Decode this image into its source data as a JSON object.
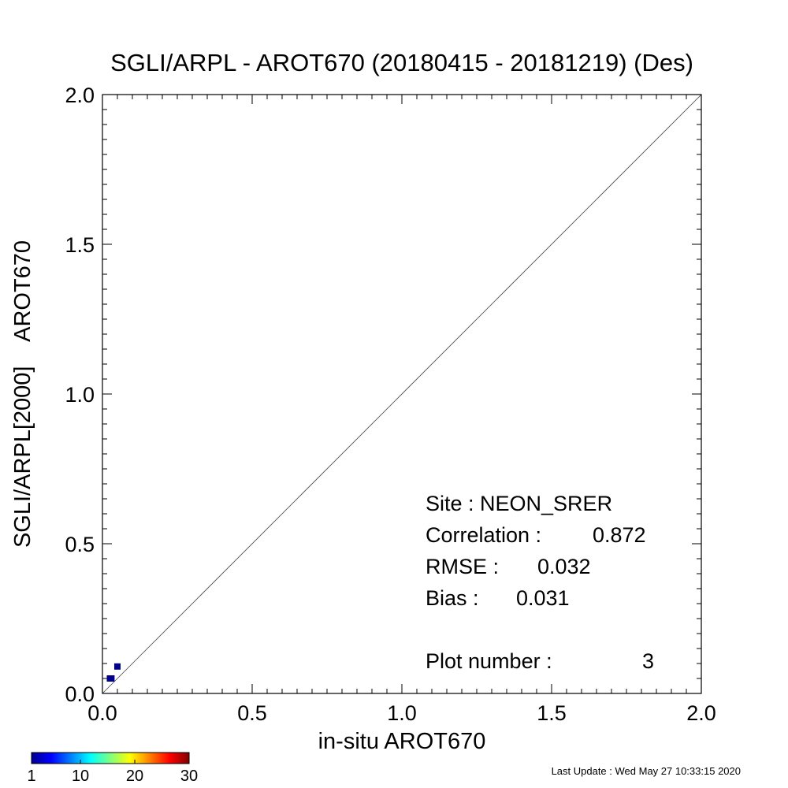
{
  "chart_data": {
    "type": "scatter",
    "title": "SGLI/ARPL - AROT670 (20180415 - 20181219) (Des)",
    "xlabel": "in-situ AROT670",
    "ylabel": "SGLI/ARPL[2000]    AROT670",
    "xlim": [
      0,
      2
    ],
    "ylim": [
      0,
      2
    ],
    "xticks": [
      "0.0",
      "0.5",
      "1.0",
      "1.5",
      "2.0"
    ],
    "yticks": [
      "0.0",
      "0.5",
      "1.0",
      "1.5",
      "2.0"
    ],
    "one_to_one_line": true,
    "grid": false,
    "points": [
      {
        "x": 0.03,
        "y": 0.05,
        "count": 1
      },
      {
        "x": 0.05,
        "y": 0.09,
        "count": 1
      },
      {
        "x": 0.025,
        "y": 0.05,
        "count": 1
      }
    ],
    "stats": [
      {
        "label": "Site : NEON_SRER",
        "value": ""
      },
      {
        "label": "Correlation :",
        "value": "0.872"
      },
      {
        "label": "RMSE :",
        "value": "0.032"
      },
      {
        "label": "Bias :",
        "value": "0.031"
      },
      {
        "label": "Plot number :",
        "value": "3"
      }
    ],
    "colorbar": {
      "ticks": [
        "1",
        "10",
        "20",
        "30"
      ],
      "tick_values": [
        1,
        10,
        20,
        30
      ],
      "range": [
        1,
        30
      ],
      "colormap": "jet",
      "point_color": "#00008f"
    }
  },
  "footer": {
    "last_update": "Last Update : Wed May 27 10:33:15 2020"
  }
}
